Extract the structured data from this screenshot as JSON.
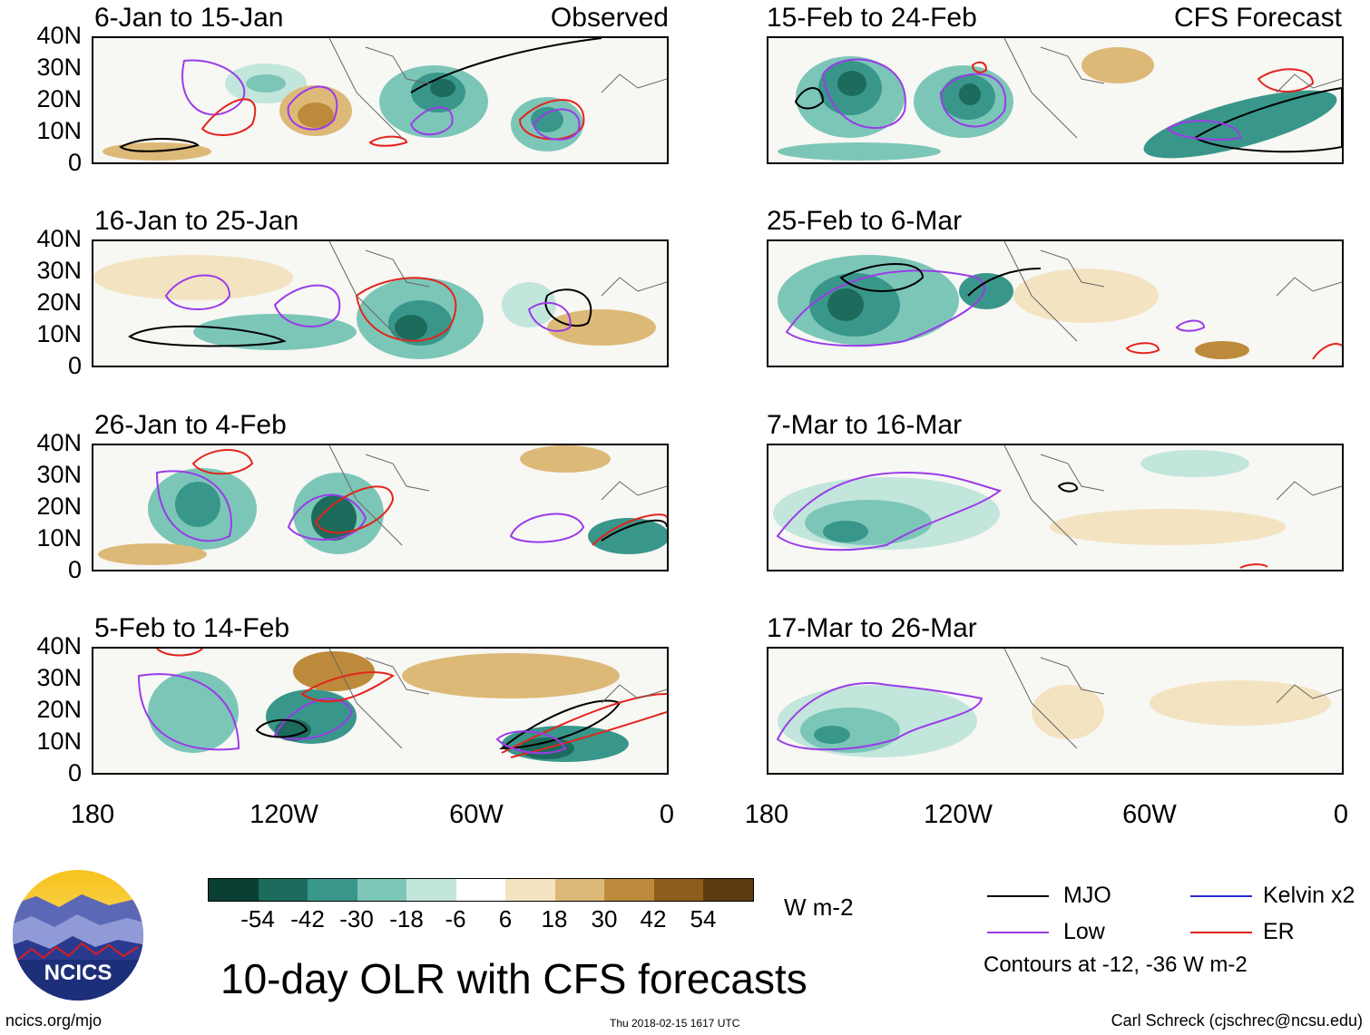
{
  "panels": {
    "p1": {
      "title": "6-Jan to 15-Jan",
      "label": "Observed"
    },
    "p2": {
      "title": "16-Jan to 25-Jan"
    },
    "p3": {
      "title": "26-Jan to 4-Feb"
    },
    "p4": {
      "title": "5-Feb to 14-Feb"
    },
    "p5": {
      "title": "15-Feb to 24-Feb",
      "label": "CFS Forecast"
    },
    "p6": {
      "title": "25-Feb to 6-Mar"
    },
    "p7": {
      "title": "7-Mar to 16-Mar"
    },
    "p8": {
      "title": "17-Mar to 26-Mar"
    }
  },
  "y_ticks": [
    "40N",
    "30N",
    "20N",
    "10N",
    "0"
  ],
  "x_ticks": [
    "180",
    "120W",
    "60W",
    "0"
  ],
  "colorbar": {
    "labels": [
      "-54",
      "-42",
      "-30",
      "-18",
      "-6",
      "6",
      "18",
      "30",
      "42",
      "54"
    ],
    "colors": [
      "#0b3e33",
      "#1c6b5c",
      "#39968a",
      "#7cc6b8",
      "#c3e6dc",
      "#ffffff",
      "#f3e3c1",
      "#ddb978",
      "#bd8a3b",
      "#8e5d1c",
      "#5d3b10"
    ],
    "units": "W m-2"
  },
  "title": "10-day OLR with CFS forecasts",
  "legend": {
    "mjo": {
      "label": "MJO",
      "color": "#000000"
    },
    "low": {
      "label": "Low",
      "color": "#9a3ce8"
    },
    "kelvin": {
      "label": "Kelvin x2",
      "color": "#2a2ad8"
    },
    "er": {
      "label": "ER",
      "color": "#e3241c"
    },
    "note": "Contours at -12, -36 W m-2"
  },
  "logo_text": "NCICS",
  "footer": {
    "left": "ncics.org/mjo",
    "center": "Thu 2018-02-15 1617 UTC",
    "right": "Carl Schreck (cjschrec@ncsu.edu)"
  }
}
